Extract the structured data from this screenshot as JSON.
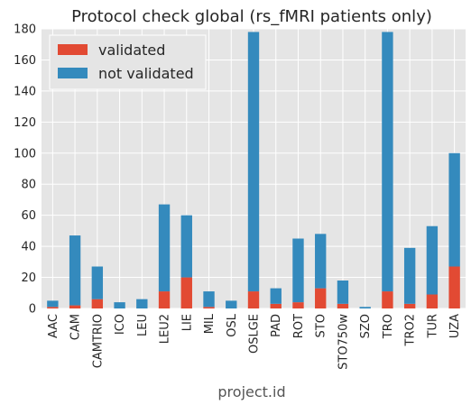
{
  "chart_data": {
    "type": "bar",
    "stacked": true,
    "title": "Protocol check global (rs_fMRI patients only)",
    "xlabel": "project.id",
    "ylabel": "",
    "ylim": [
      0,
      180
    ],
    "yticks": [
      0,
      20,
      40,
      60,
      80,
      100,
      120,
      140,
      160,
      180
    ],
    "grid": true,
    "legend_position": "top-left",
    "categories": [
      "AAC",
      "CAM",
      "CAMTRIO",
      "ICO",
      "LEU",
      "LEU2",
      "LIE",
      "MIL",
      "OSL",
      "OSLGE",
      "PAD",
      "ROT",
      "STO",
      "STO750w",
      "SZO",
      "TRO",
      "TRO2",
      "TUR",
      "UZA"
    ],
    "series": [
      {
        "name": "validated",
        "color": "#e24a33",
        "values": [
          1,
          2,
          6,
          0,
          0,
          11,
          20,
          1,
          0,
          11,
          3,
          4,
          13,
          3,
          0,
          11,
          3,
          9,
          27
        ]
      },
      {
        "name": "not validated",
        "color": "#348abd",
        "values": [
          4,
          45,
          21,
          4,
          6,
          56,
          40,
          10,
          5,
          167,
          10,
          41,
          35,
          15,
          1,
          167,
          36,
          44,
          73
        ]
      }
    ]
  }
}
